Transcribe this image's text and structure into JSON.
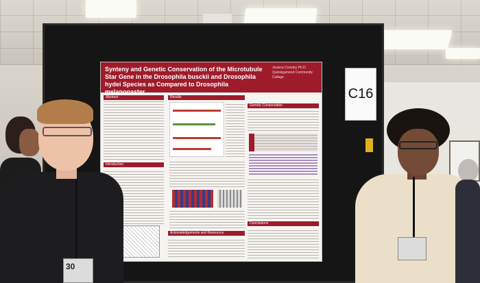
{
  "poster": {
    "title": "Synteny and Genetic Conservation of the Microtubule Star Gene in the Drosophila busckii and Drosophila hydei Species as Compared to Drosophila melanogaster",
    "authors": "Jessica Crowley Ph.D.",
    "affiliation": "Quinsigamond Community College",
    "sections": [
      "Abstract",
      "Introduction",
      "Results",
      "Genetic Conservation",
      "Acknowledgements and Resources",
      "Conclusions"
    ]
  },
  "booth_sign": {
    "label": "C16"
  },
  "badge": {
    "text": "30"
  },
  "colors": {
    "poster_header": "#9d1b2a",
    "board": "#151515"
  }
}
